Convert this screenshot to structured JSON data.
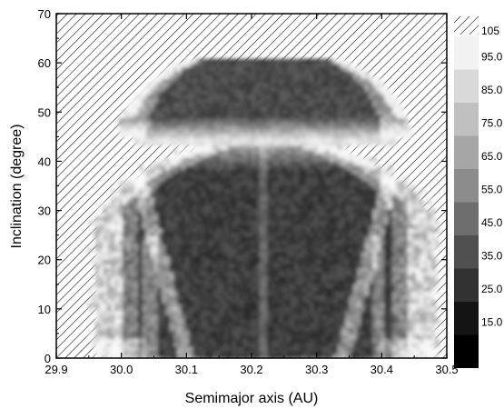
{
  "chart_data": {
    "type": "heatmap",
    "xlabel": "Semimajor axis (AU)",
    "ylabel": "Inclination (degree)",
    "xlim": [
      29.9,
      30.5
    ],
    "ylim": [
      0,
      70
    ],
    "x_ticks": [
      "29.9",
      "30.0",
      "30.1",
      "30.2",
      "30.3",
      "30.4",
      "30.5"
    ],
    "y_ticks": [
      "0",
      "10",
      "20",
      "30",
      "40",
      "50",
      "60",
      "70"
    ],
    "hatched_region": "unstable / empty (hatched)",
    "colorbar": {
      "hatched_label": "105",
      "levels": [
        "95.0",
        "85.0",
        "75.0",
        "65.0",
        "55.0",
        "45.0",
        "35.0",
        "25.0",
        "15.0"
      ],
      "colors": [
        "#f2f2f2",
        "#d9d9d9",
        "#c0c0c0",
        "#a6a6a6",
        "#8c8c8c",
        "#6e6e6e",
        "#505050",
        "#323232",
        "#141414",
        "#000000"
      ]
    },
    "regions": [
      {
        "name": "upper band",
        "a_range": [
          29.99,
          30.44
        ],
        "i_range": [
          45,
          61
        ],
        "typical_value": 25
      },
      {
        "name": "main region",
        "a_range": [
          30.0,
          30.44
        ],
        "i_range": [
          0,
          44
        ],
        "typical_value": 20
      }
    ]
  }
}
